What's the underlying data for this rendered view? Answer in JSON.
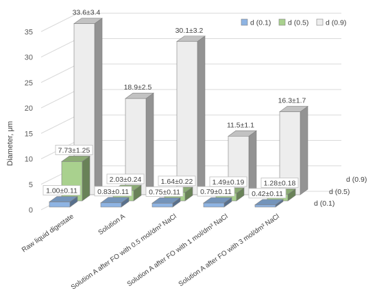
{
  "chart_data": {
    "type": "bar",
    "style": "3d-clustered-depth",
    "ylabel": "Diameter, μm",
    "ylim": [
      0,
      35
    ],
    "yticks": [
      0,
      5,
      10,
      15,
      20,
      25,
      30,
      35
    ],
    "grid": true,
    "legend_position": "top-right",
    "categories": [
      "Raw liquid digestate",
      "Solution A",
      "Solution A after FO with 0.5 mol/dm³ NaCl",
      "Solution A after FO with 1 mol/dm³ NaCl",
      "Solution A after FO with 3 mol/dm³ NaCl"
    ],
    "series": [
      {
        "name": "d (0.1)",
        "depth_label": "d (0.1)",
        "color": "#8EB4E3",
        "values": [
          1.0,
          0.83,
          0.75,
          0.79,
          0.42
        ],
        "labels": [
          "1.00±0.11",
          "0.83±0.11",
          "0.75±0.11",
          "0.79±0.11",
          "0.42±0.11"
        ]
      },
      {
        "name": "d (0.5)",
        "depth_label": "d (0.5)",
        "color": "#A9D18E",
        "values": [
          7.73,
          2.03,
          1.64,
          1.49,
          1.28
        ],
        "labels": [
          "7.73±1.25",
          "2.03±0.24",
          "1.64±0.22",
          "1.49±0.19",
          "1.28±0.18"
        ]
      },
      {
        "name": "d (0.9)",
        "depth_label": "d (0.9)",
        "color": "#EDEDED",
        "values": [
          33.6,
          18.9,
          30.1,
          11.5,
          16.3
        ],
        "labels": [
          "33.6±3.4",
          "18.9±2.5",
          "30.1±3.2",
          "11.5±1.1",
          "16.3±1.7"
        ]
      }
    ]
  }
}
